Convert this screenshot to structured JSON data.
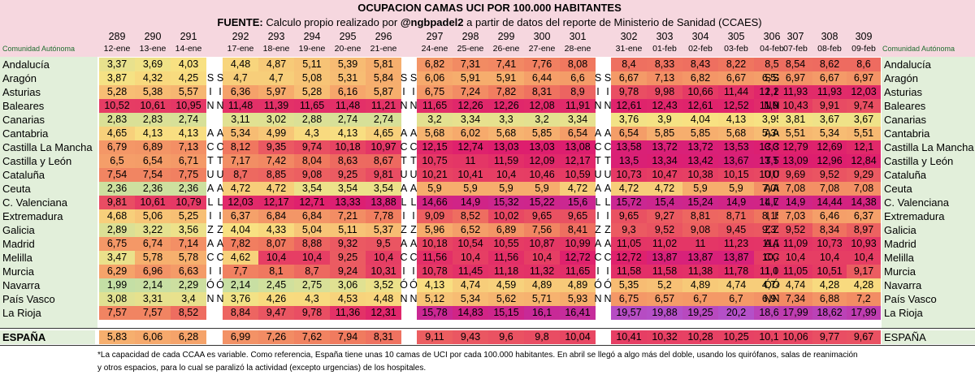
{
  "chart_data": {
    "type": "table",
    "title": "OCUPACION CAMAS UCI POR 100.000 HABITANTES",
    "source_label": "FUENTE:",
    "source_text_1": "Calculo propio realizado por",
    "source_handle": "@ngbpadel2",
    "source_text_2": "a partir de datos del reporte de Ministerio de Sanidad (CCAES)",
    "region_header": "Comunidad Autónoma",
    "report_numbers": [
      "289",
      "290",
      "291",
      "292",
      "293",
      "294",
      "295",
      "296",
      "297",
      "298",
      "299",
      "300",
      "301",
      "302",
      "303",
      "304",
      "305",
      "306",
      "307",
      "308",
      "309"
    ],
    "dates": [
      "12-ene",
      "13-ene",
      "14-ene",
      "17-ene",
      "18-ene",
      "19-ene",
      "20-ene",
      "21-ene",
      "24-ene",
      "25-ene",
      "26-ene",
      "27-ene",
      "28-ene",
      "31-ene",
      "01-feb",
      "02-feb",
      "03-feb",
      "04-feb",
      "07-feb",
      "08-feb",
      "09-feb"
    ],
    "weekend_letters": [
      "S",
      "S"
    ],
    "regions": [
      {
        "name": "Andalucía",
        "weekend": [
          "",
          ""
        ],
        "values": [
          "3,37",
          "3,69",
          "4,03",
          "4,48",
          "4,87",
          "5,11",
          "5,39",
          "5,81",
          "6,82",
          "7,31",
          "7,41",
          "7,76",
          "8,08",
          "8,4",
          "8,33",
          "8,43",
          "8,22",
          "8,5",
          "8,54",
          "8,62",
          "8,6"
        ]
      },
      {
        "name": "Aragón",
        "weekend": [
          "S",
          "S"
        ],
        "values": [
          "3,87",
          "4,32",
          "4,25",
          "4,7",
          "4,7",
          "5,08",
          "5,31",
          "5,84",
          "6,06",
          "5,91",
          "5,91",
          "6,44",
          "6,6",
          "6,67",
          "7,13",
          "6,82",
          "6,67",
          "6,52",
          "6,97",
          "6,67",
          "6,97"
        ]
      },
      {
        "name": "Asturias",
        "weekend": [
          "I",
          "I"
        ],
        "values": [
          "5,28",
          "5,38",
          "5,57",
          "6,36",
          "5,97",
          "5,28",
          "6,16",
          "5,87",
          "6,75",
          "7,24",
          "7,82",
          "8,31",
          "8,9",
          "9,78",
          "9,98",
          "10,66",
          "11,44",
          "12,22",
          "11,93",
          "11,93",
          "12,03"
        ]
      },
      {
        "name": "Baleares",
        "weekend": [
          "N",
          "N"
        ],
        "values": [
          "10,52",
          "10,61",
          "10,95",
          "11,48",
          "11,39",
          "11,65",
          "11,48",
          "11,21",
          "11,65",
          "12,26",
          "12,26",
          "12,08",
          "11,91",
          "12,61",
          "12,43",
          "12,61",
          "12,52",
          "11,91",
          "10,43",
          "9,91",
          "9,74"
        ]
      },
      {
        "name": "Canarias",
        "weekend": [
          "",
          ""
        ],
        "values": [
          "2,83",
          "2,83",
          "2,74",
          "3,11",
          "3,02",
          "2,88",
          "2,74",
          "2,74",
          "3,2",
          "3,34",
          "3,3",
          "3,2",
          "3,34",
          "3,76",
          "3,9",
          "4,04",
          "4,13",
          "3,95",
          "3,81",
          "3,67",
          "3,67"
        ]
      },
      {
        "name": "Cantabria",
        "weekend": [
          "A",
          "A"
        ],
        "values": [
          "4,65",
          "4,13",
          "4,13",
          "5,34",
          "4,99",
          "4,3",
          "4,13",
          "4,65",
          "5,68",
          "6,02",
          "5,68",
          "5,85",
          "6,54",
          "6,54",
          "5,85",
          "5,85",
          "5,68",
          "5,34",
          "5,51",
          "5,34",
          "5,51"
        ]
      },
      {
        "name": "Castilla La Mancha",
        "weekend": [
          "C",
          "C"
        ],
        "values": [
          "6,79",
          "6,89",
          "7,13",
          "8,12",
          "9,35",
          "9,74",
          "10,18",
          "10,97",
          "12,15",
          "12,74",
          "13,03",
          "13,03",
          "13,08",
          "13,58",
          "13,72",
          "13,72",
          "13,53",
          "13,33",
          "12,79",
          "12,69",
          "12,1"
        ]
      },
      {
        "name": "Castilla y León",
        "weekend": [
          "T",
          "T"
        ],
        "values": [
          "6,5",
          "6,54",
          "6,71",
          "7,17",
          "7,42",
          "8,04",
          "8,63",
          "8,67",
          "10,75",
          "11",
          "11,59",
          "12,09",
          "12,17",
          "13,5",
          "13,34",
          "13,42",
          "13,67",
          "13,59",
          "13,09",
          "12,96",
          "12,84"
        ]
      },
      {
        "name": "Cataluña",
        "weekend": [
          "U",
          "U"
        ],
        "values": [
          "7,54",
          "7,54",
          "7,75",
          "8,7",
          "8,85",
          "9,08",
          "9,25",
          "9,81",
          "10,21",
          "10,41",
          "10,4",
          "10,46",
          "10,59",
          "10,73",
          "10,47",
          "10,38",
          "10,15",
          "10,01",
          "9,69",
          "9,52",
          "9,29"
        ]
      },
      {
        "name": "Ceuta",
        "weekend": [
          "A",
          "A"
        ],
        "values": [
          "2,36",
          "2,36",
          "2,36",
          "4,72",
          "4,72",
          "3,54",
          "3,54",
          "3,54",
          "5,9",
          "5,9",
          "5,9",
          "5,9",
          "4,72",
          "4,72",
          "4,72",
          "5,9",
          "5,9",
          "7,08",
          "7,08",
          "7,08",
          "7,08"
        ]
      },
      {
        "name": "C. Valenciana",
        "weekend": [
          "L",
          "L"
        ],
        "values": [
          "9,81",
          "10,61",
          "10,79",
          "12,03",
          "12,17",
          "12,71",
          "13,33",
          "13,88",
          "14,66",
          "14,9",
          "15,32",
          "15,22",
          "15,6",
          "15,72",
          "15,4",
          "15,24",
          "14,9",
          "14,78",
          "14,9",
          "14,44",
          "14,38"
        ]
      },
      {
        "name": "Extremadura",
        "weekend": [
          "I",
          "I"
        ],
        "values": [
          "4,68",
          "5,06",
          "5,25",
          "6,37",
          "6,84",
          "6,84",
          "7,21",
          "7,78",
          "9,09",
          "8,52",
          "10,02",
          "9,65",
          "9,65",
          "9,65",
          "9,27",
          "8,81",
          "8,71",
          "8,15",
          "7,03",
          "6,46",
          "6,37"
        ]
      },
      {
        "name": "Galicia",
        "weekend": [
          "Z",
          "Z"
        ],
        "values": [
          "2,89",
          "3,22",
          "3,56",
          "4,04",
          "4,33",
          "5,04",
          "5,11",
          "5,37",
          "5,96",
          "6,52",
          "6,89",
          "7,56",
          "8,41",
          "9,3",
          "9,52",
          "9,08",
          "9,45",
          "9,37",
          "9,52",
          "8,34",
          "8,97"
        ]
      },
      {
        "name": "Madrid",
        "weekend": [
          "A",
          "A"
        ],
        "values": [
          "6,75",
          "6,74",
          "7,14",
          "7,82",
          "8,07",
          "8,88",
          "9,32",
          "9,5",
          "10,18",
          "10,54",
          "10,55",
          "10,87",
          "10,99",
          "11,05",
          "11,02",
          "11",
          "11,23",
          "11,2",
          "11,09",
          "10,73",
          "10,93"
        ]
      },
      {
        "name": "Melilla",
        "weekend": [
          "C",
          "C"
        ],
        "values": [
          "3,47",
          "5,78",
          "5,78",
          "4,62",
          "10,4",
          "10,4",
          "9,25",
          "10,4",
          "11,56",
          "10,4",
          "11,56",
          "10,4",
          "12,72",
          "12,72",
          "13,87",
          "13,87",
          "13,87",
          "10,4",
          "10,4",
          "10,4",
          "10,4"
        ]
      },
      {
        "name": "Murcia",
        "weekend": [
          "I",
          "I"
        ],
        "values": [
          "6,29",
          "6,96",
          "6,63",
          "7,7",
          "8,1",
          "8,7",
          "9,24",
          "10,31",
          "10,78",
          "11,45",
          "11,18",
          "11,32",
          "11,65",
          "11,58",
          "11,58",
          "11,38",
          "11,78",
          "11,05",
          "11,05",
          "10,51",
          "9,17"
        ]
      },
      {
        "name": "Navarra",
        "weekend": [
          "Ó",
          "Ó"
        ],
        "values": [
          "1,99",
          "2,14",
          "2,29",
          "2,14",
          "2,45",
          "2,75",
          "3,06",
          "3,52",
          "4,13",
          "4,74",
          "4,59",
          "4,89",
          "4,89",
          "5,35",
          "5,2",
          "4,89",
          "4,74",
          "4,74",
          "4,74",
          "4,28",
          "4,28"
        ]
      },
      {
        "name": "País Vasco",
        "weekend": [
          "N",
          "N"
        ],
        "values": [
          "3,08",
          "3,31",
          "3,4",
          "3,76",
          "4,26",
          "4,3",
          "4,53",
          "4,48",
          "5,12",
          "5,34",
          "5,62",
          "5,71",
          "5,93",
          "6,75",
          "6,57",
          "6,7",
          "6,7",
          "6,97",
          "7,34",
          "6,88",
          "7,2"
        ]
      },
      {
        "name": "La Rioja",
        "weekend": [
          "",
          ""
        ],
        "values": [
          "7,57",
          "7,57",
          "8,52",
          "8,84",
          "9,47",
          "9,78",
          "11,36",
          "12,31",
          "15,78",
          "14,83",
          "15,15",
          "16,1",
          "16,41",
          "19,57",
          "19,88",
          "19,25",
          "20,2",
          "18,62",
          "17,99",
          "18,62",
          "17,99"
        ]
      }
    ],
    "total": {
      "name": "ESPAÑA",
      "values": [
        "5,83",
        "6,06",
        "6,28",
        "6,99",
        "7,26",
        "7,62",
        "7,94",
        "8,31",
        "9,11",
        "9,43",
        "9,6",
        "9,8",
        "10,04",
        "10,41",
        "10,32",
        "10,28",
        "10,25",
        "10,19",
        "10,06",
        "9,77",
        "9,67"
      ]
    },
    "footnote_1": "*La capacidad de cada CCAA es variable. Como referencia, España tiene unas 10 camas de UCI por cada 100.000 habitantes. En abril se llegó a algo más del doble, usando los quirófanos, salas de reanimación",
    "footnote_2": "y otros espacios, para lo cual se paralizó la actividad (excepto urgencias) de los hospitales."
  }
}
